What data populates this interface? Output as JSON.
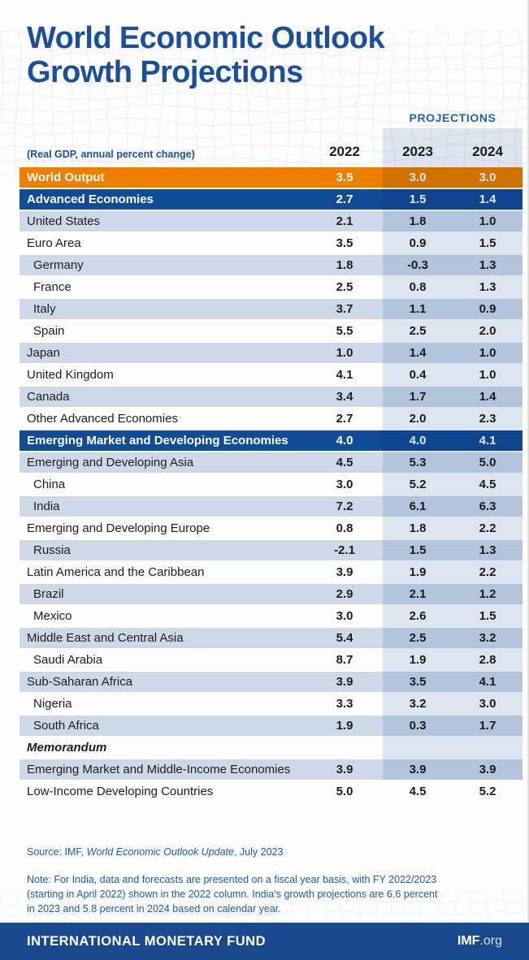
{
  "colors": {
    "title_blue": "#1B4F9E",
    "projections_blue": "#2363AD",
    "orange_row": "#EF7D00",
    "blue_row": "#0F4C94",
    "tint_row": "#CDD9E8",
    "projection_band": "#B7CBE2",
    "note_blue": "#1E5BA3",
    "footer_blue": "#17498C",
    "header_text": "#1C1C1A"
  },
  "header": {
    "title_line1": "World Economic Outlook",
    "title_line2": "Growth Projections",
    "projections_label": "PROJECTIONS"
  },
  "chart_data": {
    "type": "table",
    "title": "World Economic Outlook Growth Projections",
    "subtitle": "(Real GDP, annual percent change)",
    "columns": [
      "2022",
      "2023",
      "2024"
    ],
    "projection_columns": [
      "2023",
      "2024"
    ],
    "rows": [
      {
        "label": "World Output",
        "type": "orange",
        "indent": 0,
        "values": [
          "3.5",
          "3.0",
          "3.0"
        ]
      },
      {
        "label": "Advanced Economies",
        "type": "blue",
        "indent": 0,
        "values": [
          "2.7",
          "1.5",
          "1.4"
        ]
      },
      {
        "label": "United States",
        "type": "tint",
        "indent": 0,
        "values": [
          "2.1",
          "1.8",
          "1.0"
        ]
      },
      {
        "label": "Euro Area",
        "type": "white",
        "indent": 0,
        "values": [
          "3.5",
          "0.9",
          "1.5"
        ]
      },
      {
        "label": "Germany",
        "type": "tint",
        "indent": 1,
        "values": [
          "1.8",
          "-0.3",
          "1.3"
        ]
      },
      {
        "label": "France",
        "type": "white",
        "indent": 1,
        "values": [
          "2.5",
          "0.8",
          "1.3"
        ]
      },
      {
        "label": "Italy",
        "type": "tint",
        "indent": 1,
        "values": [
          "3.7",
          "1.1",
          "0.9"
        ]
      },
      {
        "label": "Spain",
        "type": "white",
        "indent": 1,
        "values": [
          "5.5",
          "2.5",
          "2.0"
        ]
      },
      {
        "label": "Japan",
        "type": "tint",
        "indent": 0,
        "values": [
          "1.0",
          "1.4",
          "1.0"
        ]
      },
      {
        "label": "United Kingdom",
        "type": "white",
        "indent": 0,
        "values": [
          "4.1",
          "0.4",
          "1.0"
        ]
      },
      {
        "label": "Canada",
        "type": "tint",
        "indent": 0,
        "values": [
          "3.4",
          "1.7",
          "1.4"
        ]
      },
      {
        "label": "Other Advanced Economies",
        "type": "white",
        "indent": 0,
        "values": [
          "2.7",
          "2.0",
          "2.3"
        ]
      },
      {
        "label": "Emerging Market and Developing Economies",
        "type": "blue",
        "indent": 0,
        "values": [
          "4.0",
          "4.0",
          "4.1"
        ]
      },
      {
        "label": "Emerging and Developing Asia",
        "type": "tint",
        "indent": 0,
        "values": [
          "4.5",
          "5.3",
          "5.0"
        ]
      },
      {
        "label": "China",
        "type": "white",
        "indent": 1,
        "values": [
          "3.0",
          "5.2",
          "4.5"
        ]
      },
      {
        "label": "India",
        "type": "tint",
        "indent": 1,
        "values": [
          "7.2",
          "6.1",
          "6.3"
        ]
      },
      {
        "label": "Emerging and Developing Europe",
        "type": "white",
        "indent": 0,
        "values": [
          "0.8",
          "1.8",
          "2.2"
        ]
      },
      {
        "label": "Russia",
        "type": "tint",
        "indent": 1,
        "values": [
          "-2.1",
          "1.5",
          "1.3"
        ]
      },
      {
        "label": "Latin America and the Caribbean",
        "type": "white",
        "indent": 0,
        "values": [
          "3.9",
          "1.9",
          "2.2"
        ]
      },
      {
        "label": "Brazil",
        "type": "tint",
        "indent": 1,
        "values": [
          "2.9",
          "2.1",
          "1.2"
        ]
      },
      {
        "label": "Mexico",
        "type": "white",
        "indent": 1,
        "values": [
          "3.0",
          "2.6",
          "1.5"
        ]
      },
      {
        "label": "Middle East and Central Asia",
        "type": "tint",
        "indent": 0,
        "values": [
          "5.4",
          "2.5",
          "3.2"
        ]
      },
      {
        "label": "Saudi Arabia",
        "type": "white",
        "indent": 1,
        "values": [
          "8.7",
          "1.9",
          "2.8"
        ]
      },
      {
        "label": "Sub-Saharan Africa",
        "type": "tint",
        "indent": 0,
        "values": [
          "3.9",
          "3.5",
          "4.1"
        ]
      },
      {
        "label": "Nigeria",
        "type": "white",
        "indent": 1,
        "values": [
          "3.3",
          "3.2",
          "3.0"
        ]
      },
      {
        "label": "South Africa",
        "type": "tint",
        "indent": 1,
        "values": [
          "1.9",
          "0.3",
          "1.7"
        ]
      },
      {
        "label": "Memorandum",
        "type": "white",
        "indent": 0,
        "memo": true,
        "values": [
          "",
          "",
          ""
        ]
      },
      {
        "label": "Emerging Market and Middle-Income Economies",
        "type": "tint",
        "indent": 0,
        "values": [
          "3.9",
          "3.9",
          "3.9"
        ]
      },
      {
        "label": "Low-Income Developing Countries",
        "type": "white",
        "indent": 0,
        "values": [
          "5.0",
          "4.5",
          "5.2"
        ]
      }
    ]
  },
  "source": {
    "prefix": "Source: IMF, ",
    "italic_title": "World Economic Outlook Update",
    "suffix": ", July 2023"
  },
  "note": {
    "lines": [
      "Note: For India, data and forecasts are presented on a fiscal year basis, with FY 2022/2023",
      "(starting in April 2022) shown in the 2022 column. India's growth projections are 6.6 percent",
      "in 2023 and 5.8 percent in 2024 based on calendar year."
    ]
  },
  "footer": {
    "organization": "INTERNATIONAL MONETARY FUND",
    "site_bold": "IMF",
    "site_suffix": ".org"
  }
}
